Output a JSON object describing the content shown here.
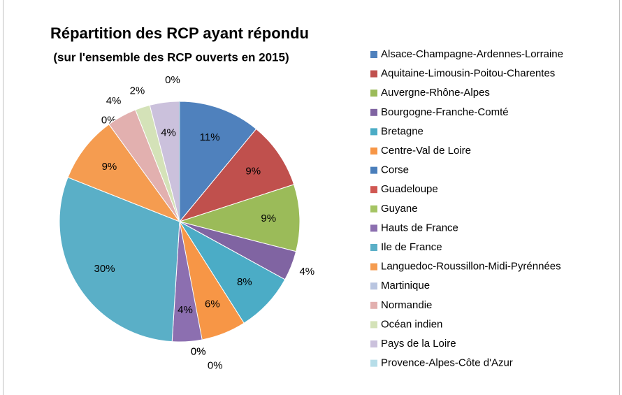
{
  "chart_data": {
    "type": "pie",
    "title": "Répartition des RCP ayant répondu",
    "subtitle": "(sur l'ensemble des RCP ouverts en 2015)",
    "categories": [
      "Alsace-Champagne-Ardennes-Lorraine",
      "Aquitaine-Limousin-Poitou-Charentes",
      "Auvergne-Rhône-Alpes",
      "Bourgogne-Franche-Comté",
      "Bretagne",
      "Centre-Val de Loire",
      "Corse",
      "Guadeloupe",
      "Guyane",
      "Hauts de France",
      "Ile de France",
      "Languedoc-Roussillon-Midi-Pyrénnées",
      "Martinique",
      "Normandie",
      "Océan indien",
      "Pays de la Loire",
      "Provence-Alpes-Côte d'Azur"
    ],
    "values": [
      11,
      9,
      9,
      4,
      8,
      6,
      0,
      0,
      0,
      4,
      30,
      9,
      0,
      4,
      2,
      4,
      0
    ],
    "value_labels": [
      "11%",
      "9%",
      "9%",
      "4%",
      "8%",
      "6%",
      "0%",
      "0%",
      "0%",
      "4%",
      "30%",
      "9%",
      "0%",
      "4%",
      "2%",
      "4%",
      "0%"
    ],
    "colors": [
      "#4f81bd",
      "#c0504d",
      "#9bbb59",
      "#8064a2",
      "#4bacc6",
      "#f79646",
      "#4a7ebb",
      "#d05752",
      "#a5c463",
      "#8c6fb0",
      "#5aafc7",
      "#f59c50",
      "#b9c5e0",
      "#e2b0af",
      "#d4e2b8",
      "#cbc1dc",
      "#b6dde8"
    ],
    "legend": "right"
  }
}
